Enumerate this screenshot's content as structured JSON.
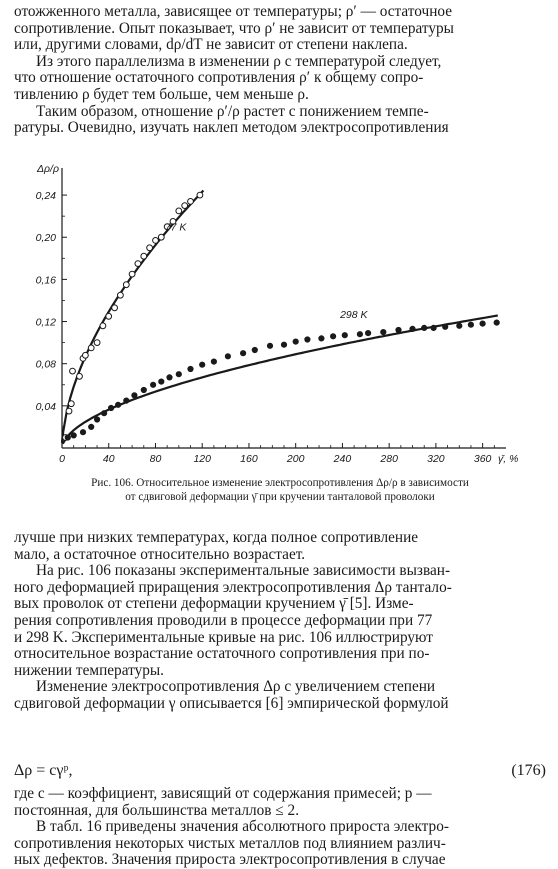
{
  "top_text": [
    "отожженного металла, зависящее от температуры; ρ′ — остаточное",
    "сопротивление. Опыт показывает, что ρ′ не зависит от температуры",
    "или, другими словами, dρ/dT не зависит от степени наклепа.",
    "Из этого параллелизма в изменении ρ с температурой следует,",
    "что отношение остаточного сопротивления ρ′ к общему сопро-",
    "тивлению ρ будет тем больше, чем меньше ρ.",
    "Таким образом, отношение ρ′/ρ растет с понижением темпе-",
    "ратуры. Очевидно, изучать наклеп методом электросопротивления"
  ],
  "chart_data": {
    "type": "scatter",
    "ylabel": "Δρ/ρ",
    "xlabel": "γ̄, %",
    "xlim": [
      0,
      380
    ],
    "ylim": [
      0,
      0.26
    ],
    "x_ticks": [
      "0",
      "40",
      "80",
      "120",
      "160",
      "200",
      "240",
      "280",
      "320",
      "360"
    ],
    "y_ticks": [
      "0,04",
      "0,08",
      "0,12",
      "0,16",
      "0,20",
      "0,24"
    ],
    "series": [
      {
        "name": "77 K",
        "marker": "open-circle",
        "points": [
          [
            3,
            0.01
          ],
          [
            6,
            0.035
          ],
          [
            8,
            0.042
          ],
          [
            9,
            0.073
          ],
          [
            15,
            0.068
          ],
          [
            18,
            0.085
          ],
          [
            20,
            0.088
          ],
          [
            25,
            0.095
          ],
          [
            30,
            0.1
          ],
          [
            35,
            0.116
          ],
          [
            40,
            0.125
          ],
          [
            45,
            0.133
          ],
          [
            50,
            0.145
          ],
          [
            55,
            0.155
          ],
          [
            60,
            0.165
          ],
          [
            65,
            0.175
          ],
          [
            70,
            0.182
          ],
          [
            75,
            0.19
          ],
          [
            80,
            0.197
          ],
          [
            85,
            0.2
          ],
          [
            90,
            0.21
          ],
          [
            95,
            0.215
          ],
          [
            100,
            0.225
          ],
          [
            105,
            0.23
          ],
          [
            110,
            0.234
          ],
          [
            118,
            0.24
          ]
        ]
      },
      {
        "name": "298 K",
        "marker": "filled-circle",
        "points": [
          [
            5,
            0.01
          ],
          [
            10,
            0.012
          ],
          [
            18,
            0.015
          ],
          [
            25,
            0.02
          ],
          [
            30,
            0.027
          ],
          [
            36,
            0.033
          ],
          [
            42,
            0.038
          ],
          [
            48,
            0.041
          ],
          [
            55,
            0.045
          ],
          [
            62,
            0.05
          ],
          [
            70,
            0.055
          ],
          [
            78,
            0.06
          ],
          [
            85,
            0.063
          ],
          [
            92,
            0.067
          ],
          [
            100,
            0.07
          ],
          [
            110,
            0.075
          ],
          [
            120,
            0.079
          ],
          [
            130,
            0.082
          ],
          [
            142,
            0.087
          ],
          [
            155,
            0.09
          ],
          [
            165,
            0.093
          ],
          [
            178,
            0.097
          ],
          [
            190,
            0.098
          ],
          [
            200,
            0.101
          ],
          [
            210,
            0.103
          ],
          [
            222,
            0.104
          ],
          [
            232,
            0.106
          ],
          [
            242,
            0.107
          ],
          [
            255,
            0.108
          ],
          [
            262,
            0.109
          ],
          [
            275,
            0.11
          ],
          [
            288,
            0.112
          ],
          [
            300,
            0.113
          ],
          [
            310,
            0.114
          ],
          [
            318,
            0.114
          ],
          [
            328,
            0.115
          ],
          [
            340,
            0.116
          ],
          [
            350,
            0.117
          ],
          [
            360,
            0.118
          ],
          [
            372,
            0.119
          ]
        ]
      }
    ],
    "curve_labels": [
      "77 K",
      "298 K"
    ]
  },
  "caption_lines": [
    "Рис. 106. Относительное изменение электросопротивления Δρ/ρ в зависимости",
    "от сдвиговой деформации γ̄ при кручении танталовой проволоки"
  ],
  "body_text": [
    "лучше при низких температурах, когда полное сопротивление",
    "мало, а остаточное относительно возрастает.",
    "На рис. 106 показаны экспериментальные зависимости вызван-",
    "ного деформацией приращения электросопротивления Δρ тантало-",
    "вых проволок от степени деформации кручением γ̄ [5]. Измe-",
    "рения сопротивления проводили в процессе деформации при 77",
    "и 298 K. Экспериментальные кривые на рис. 106 иллюстрируют",
    "относительное возрастание остаточного сопротивления при по-",
    "нижении температуры.",
    "Изменение электросопротивления Δρ с увеличением степени",
    "сдвиговой деформации γ описывается [6] эмпирической формулой"
  ],
  "equation": {
    "formula": "Δρ = cγᵖ,",
    "number": "(176)"
  },
  "bottom_text": [
    "где c — коэффициент, зависящий от содержания примесей; p —",
    "постоянная, для большинства металлов ≤ 2.",
    "В табл. 16 приведены значения абсолютного прироста электро-",
    "сопротивления некоторых чистых металлов под влиянием различ-",
    "ных дефектов. Значения прироста электросопротивления в случае"
  ]
}
